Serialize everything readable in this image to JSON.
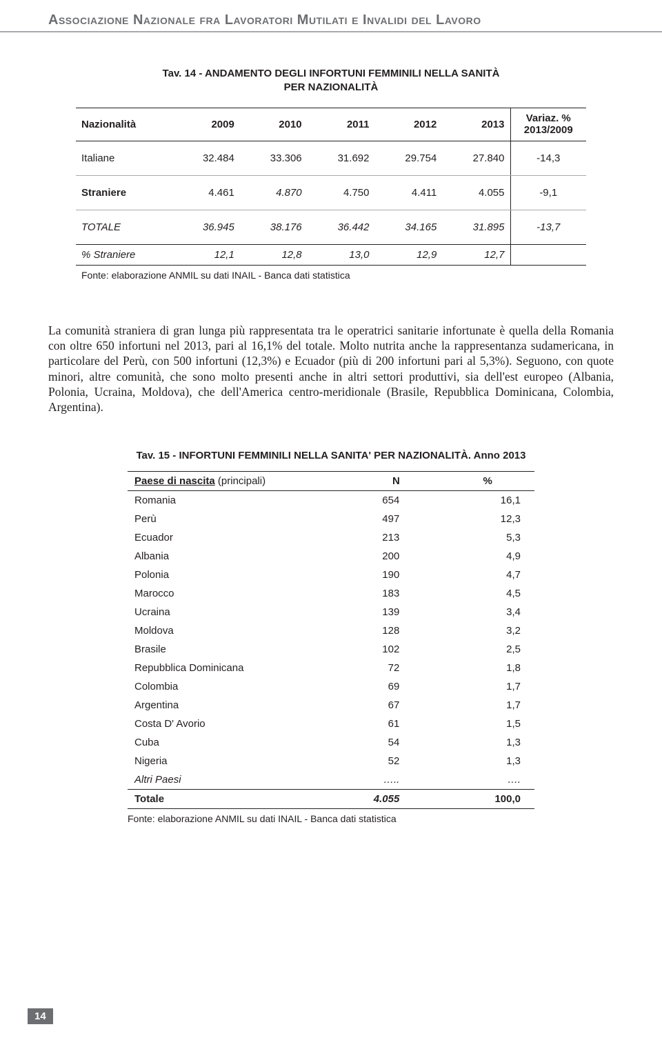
{
  "header": "Associazione Nazionale fra Lavoratori Mutilati e Invalidi del Lavoro",
  "tav14": {
    "title_l1": "Tav. 14 - ANDAMENTO DEGLI INFORTUNI FEMMINILI NELLA SANITÀ",
    "title_l2": "PER NAZIONALITÀ",
    "head": {
      "c0": "Nazionalità",
      "c1": "2009",
      "c2": "2010",
      "c3": "2011",
      "c4": "2012",
      "c5": "2013",
      "c6a": "Variaz. %",
      "c6b": "2013/2009"
    },
    "rows": {
      "italiane": {
        "label": "Italiane",
        "v": [
          "32.484",
          "33.306",
          "31.692",
          "29.754",
          "27.840"
        ],
        "var": "-14,3"
      },
      "straniere": {
        "label": "Straniere",
        "v": [
          "4.461",
          "4.870",
          "4.750",
          "4.411",
          "4.055"
        ],
        "var": "-9,1"
      },
      "totale": {
        "label": "TOTALE",
        "v": [
          "36.945",
          "38.176",
          "36.442",
          "34.165",
          "31.895"
        ],
        "var": "-13,7"
      },
      "pct": {
        "label": "% Straniere",
        "v": [
          "12,1",
          "12,8",
          "13,0",
          "12,9",
          "12,7"
        ],
        "var": ""
      }
    },
    "footnote": "Fonte: elaborazione ANMIL su dati INAIL - Banca dati statistica"
  },
  "paragraph": "La comunità straniera di gran lunga più rappresentata tra le operatrici sanitarie infortunate è quella della Romania con oltre 650 infortuni nel 2013, pari al 16,1% del totale. Molto nutrita anche la rappresentanza sudamericana, in particolare del Perù, con 500 infortuni (12,3%) e Ecuador (più di 200 infortuni pari al 5,3%). Seguono, con quote minori, altre comunità, che sono molto presenti anche in altri settori produttivi, sia dell'est europeo (Albania, Polonia, Ucraina, Moldova), che dell'America centro-meridionale (Brasile, Repubblica Dominicana, Colombia, Argentina).",
  "tav15": {
    "title": "Tav. 15 - INFORTUNI FEMMINILI NELLA SANITA' PER NAZIONALITÀ. Anno 2013",
    "head": {
      "c0": "Paese di nascita",
      "c0s": " (principali)",
      "c1": "N",
      "c2": "%"
    },
    "rows": [
      {
        "c": "Romania",
        "n": "654",
        "p": "16,1"
      },
      {
        "c": "Perù",
        "n": "497",
        "p": "12,3"
      },
      {
        "c": "Ecuador",
        "n": "213",
        "p": "5,3"
      },
      {
        "c": "Albania",
        "n": "200",
        "p": "4,9"
      },
      {
        "c": "Polonia",
        "n": "190",
        "p": "4,7"
      },
      {
        "c": "Marocco",
        "n": "183",
        "p": "4,5"
      },
      {
        "c": "Ucraina",
        "n": "139",
        "p": "3,4"
      },
      {
        "c": "Moldova",
        "n": "128",
        "p": "3,2"
      },
      {
        "c": "Brasile",
        "n": "102",
        "p": "2,5"
      },
      {
        "c": "Repubblica Dominicana",
        "n": "72",
        "p": "1,8"
      },
      {
        "c": "Colombia",
        "n": "69",
        "p": "1,7"
      },
      {
        "c": "Argentina",
        "n": "67",
        "p": "1,7"
      },
      {
        "c": "Costa D' Avorio",
        "n": "61",
        "p": "1,5"
      },
      {
        "c": "Cuba",
        "n": "54",
        "p": "1,3"
      },
      {
        "c": "Nigeria",
        "n": "52",
        "p": "1,3"
      }
    ],
    "altri": {
      "c": "Altri Paesi",
      "n": "…..",
      "p": "…."
    },
    "totale": {
      "c": "Totale",
      "n": "4.055",
      "p": "100,0"
    },
    "footnote": "Fonte: elaborazione ANMIL su dati INAIL - Banca dati statistica"
  },
  "page_number": "14"
}
